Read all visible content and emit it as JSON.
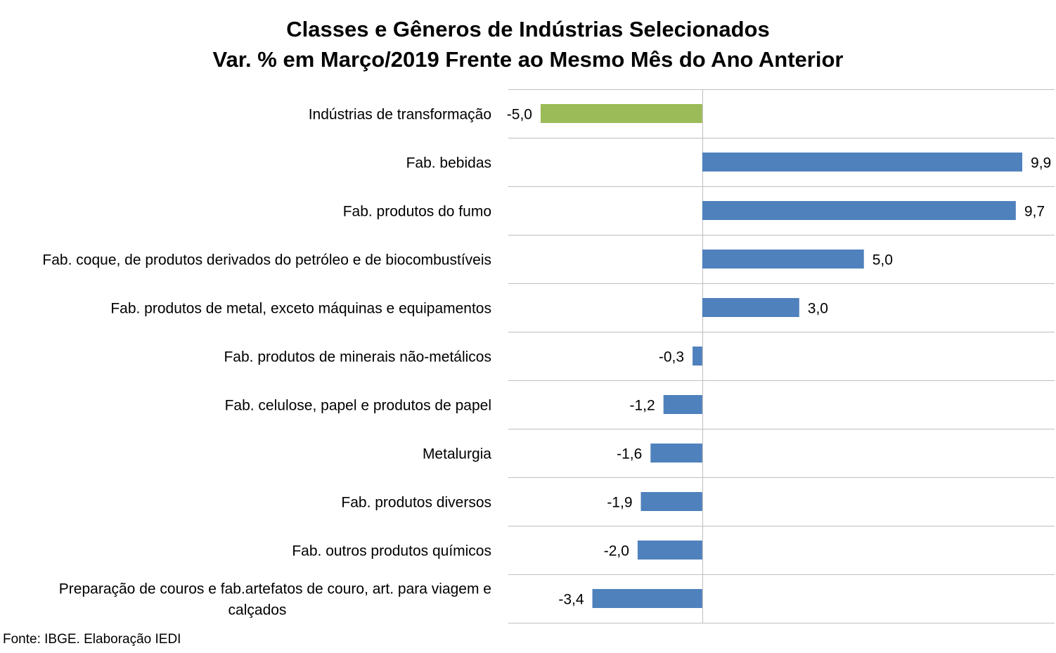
{
  "chart_data": {
    "type": "bar",
    "orientation": "horizontal",
    "title_lines": [
      "Classes e Gêneros de Indústrias Selecionados",
      "Var. % em Março/2019 Frente ao Mesmo Mês do Ano Anterior"
    ],
    "categories": [
      [
        "Indústrias de transformação"
      ],
      [
        "Fab. bebidas"
      ],
      [
        "Fab. produtos do fumo"
      ],
      [
        "Fab. coque, de produtos derivados do petróleo e de biocombustíveis"
      ],
      [
        "Fab. produtos de metal, exceto máquinas e equipamentos"
      ],
      [
        "Fab. produtos de minerais não-metálicos"
      ],
      [
        "Fab. celulose, papel e produtos de papel"
      ],
      [
        "Metalurgia"
      ],
      [
        "Fab. produtos diversos"
      ],
      [
        "Fab. outros produtos químicos"
      ],
      [
        "Preparação de couros e fab.artefatos de couro, art. para viagem e",
        "calçados"
      ]
    ],
    "values": [
      -5.0,
      9.9,
      9.7,
      5.0,
      3.0,
      -0.3,
      -1.2,
      -1.6,
      -1.9,
      -2.0,
      -3.4
    ],
    "value_labels": [
      "-5,0",
      "9,9",
      "9,7",
      "5,0",
      "3,0",
      "-0,3",
      "-1,2",
      "-1,6",
      "-1,9",
      "-2,0",
      "-3,4"
    ],
    "xlim": [
      -6.0,
      10.9
    ],
    "colors": [
      "#9bbb59",
      "#4f81bd",
      "#4f81bd",
      "#4f81bd",
      "#4f81bd",
      "#4f81bd",
      "#4f81bd",
      "#4f81bd",
      "#4f81bd",
      "#4f81bd",
      "#4f81bd"
    ],
    "grid": true,
    "legend": "none"
  },
  "colors": {
    "highlight_bar": "#9bbb59",
    "default_bar": "#4f81bd",
    "gridline": "#bfbfbf"
  },
  "footer": {
    "source": "Fonte: IBGE. Elaboração IEDI"
  }
}
